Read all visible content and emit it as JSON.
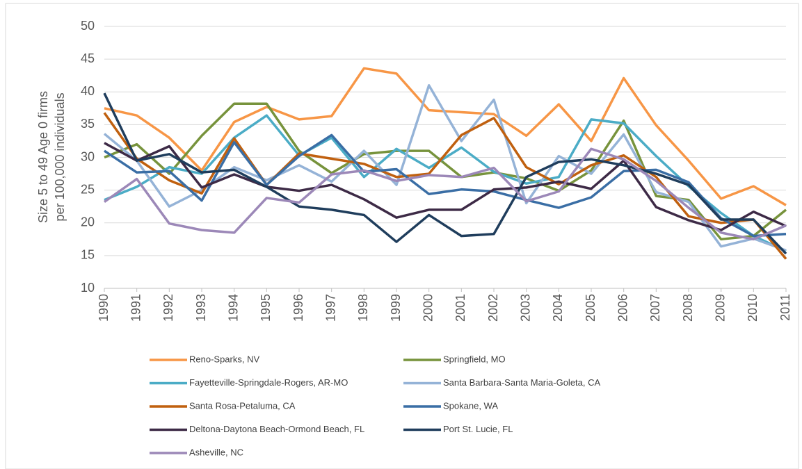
{
  "chart_data": {
    "type": "line",
    "ylabel": [
      "Size 5 to 49 Age 0 firms",
      "per 100,000 individuals"
    ],
    "categories": [
      "1990",
      "1991",
      "1992",
      "1993",
      "1994",
      "1995",
      "1996",
      "1997",
      "1998",
      "1999",
      "2000",
      "2001",
      "2002",
      "2003",
      "2004",
      "2005",
      "2006",
      "2007",
      "2008",
      "2009",
      "2010",
      "2011"
    ],
    "ylim": [
      10,
      50
    ],
    "yticks": [
      10,
      15,
      20,
      25,
      30,
      35,
      40,
      45,
      50
    ],
    "grid": true,
    "series": [
      {
        "name": "Reno-Sparks, NV",
        "color": "#f79646",
        "values": [
          37.5,
          36.4,
          33,
          28,
          35.4,
          37.7,
          35.8,
          36.3,
          43.6,
          42.8,
          37.2,
          36.9,
          36.6,
          33.3,
          38.1,
          32.5,
          42.1,
          34.9,
          29.5,
          23.7,
          25.6,
          22.7
        ]
      },
      {
        "name": "Springfield, MO",
        "color": "#77933c",
        "values": [
          30,
          32,
          27.5,
          33.3,
          38.2,
          38.2,
          31,
          27.6,
          30.5,
          31,
          31,
          27,
          27.7,
          26.8,
          24.9,
          28,
          35.6,
          24.1,
          23.5,
          17.5,
          18,
          22
        ]
      },
      {
        "name": "Fayetteville-Springdale-Rogers, AR-MO",
        "color": "#4bacc6",
        "values": [
          23.5,
          25.5,
          28.5,
          27.5,
          33,
          36.4,
          30.3,
          33,
          27,
          31.3,
          28.4,
          31.5,
          27.8,
          26,
          27,
          35.8,
          35.2,
          30.2,
          25.6,
          21.5,
          18,
          15.7
        ]
      },
      {
        "name": "Santa Barbara-Santa Maria-Goleta, CA",
        "color": "#95b3d7",
        "values": [
          33.6,
          29.5,
          22.5,
          25,
          28.5,
          26.5,
          28.8,
          26.3,
          31,
          25.8,
          41,
          32.5,
          38.8,
          23,
          30.2,
          27.5,
          33.5,
          24.7,
          23.2,
          16.4,
          17.6,
          15.8
        ]
      },
      {
        "name": "Santa Rosa-Petaluma, CA",
        "color": "#c0600f",
        "values": [
          36.8,
          29.8,
          26.5,
          24.5,
          32.9,
          25.8,
          30.6,
          29.8,
          29,
          27,
          27.5,
          33.4,
          36,
          28.5,
          25.9,
          28.8,
          30.3,
          27,
          21,
          20,
          20.5,
          14.5
        ]
      },
      {
        "name": "Spokane, WA",
        "color": "#3a6ea5",
        "values": [
          31,
          27.7,
          27.9,
          23.4,
          32.3,
          25.8,
          30.2,
          33.4,
          27.8,
          28.2,
          24.4,
          25.1,
          24.8,
          23.5,
          22.3,
          23.9,
          27.9,
          28.1,
          26.2,
          20.7,
          18,
          18.3
        ]
      },
      {
        "name": "Deltona-Daytona Beach-Ormond Beach, FL",
        "color": "#3d2a46",
        "values": [
          32.2,
          29.5,
          31.7,
          25.4,
          27.4,
          25.5,
          24.9,
          25.8,
          23.6,
          20.8,
          22,
          22,
          25.1,
          25.4,
          26.3,
          25.2,
          29.5,
          22.4,
          20.4,
          18.9,
          21.7,
          19.5
        ]
      },
      {
        "name": "Port St. Lucie, FL",
        "color": "#1f3d5c",
        "values": [
          39.8,
          29.5,
          30.5,
          27.7,
          28.1,
          25.5,
          22.5,
          22,
          21.2,
          17.1,
          21.2,
          18,
          18.3,
          27,
          29.3,
          29.7,
          28.8,
          27.5,
          25.8,
          20.5,
          20.5,
          15.3
        ]
      },
      {
        "name": "Asheville, NC",
        "color": "#9c88b8",
        "values": [
          23.2,
          26.7,
          19.9,
          18.9,
          18.5,
          23.8,
          23.1,
          27.4,
          28,
          26.4,
          27.3,
          27,
          28.4,
          23.3,
          24.8,
          31.3,
          29.7,
          26.4,
          22.3,
          18.5,
          17.5,
          19.6
        ]
      }
    ]
  }
}
